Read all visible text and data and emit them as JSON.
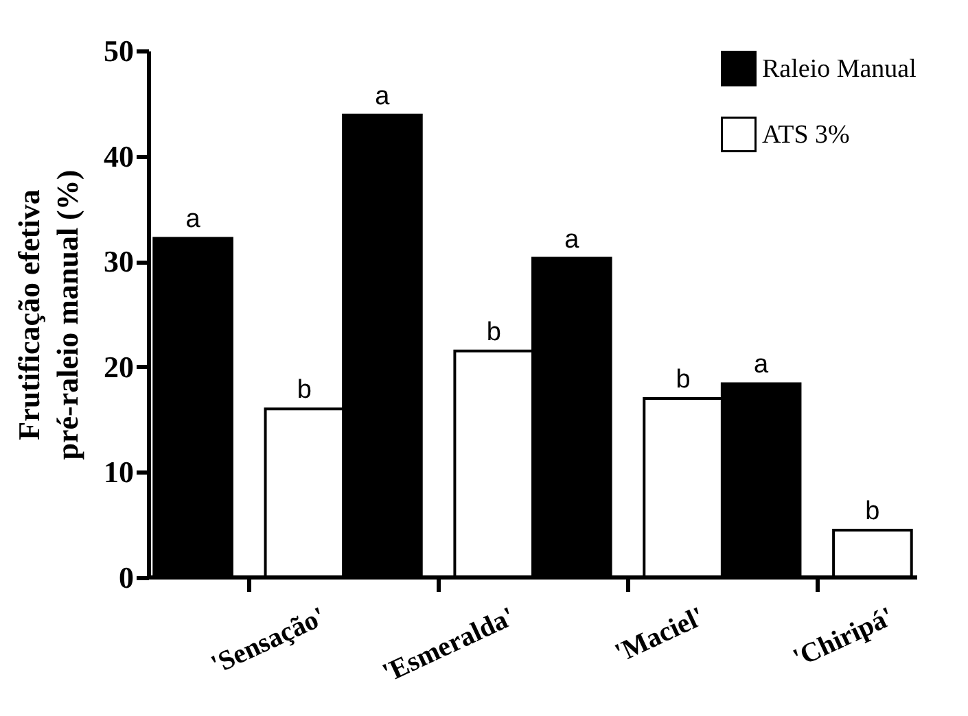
{
  "chart_data": {
    "type": "bar",
    "ylabel": "Frutificação efetiva\npré-raleio manual (%)",
    "categories": [
      "'Sensação'",
      "'Esmeralda'",
      "'Maciel'",
      "'Chiripá'"
    ],
    "series": [
      {
        "name": "Raleio Manual",
        "color": "#000000",
        "values": [
          32.2,
          43.9,
          30.3,
          18.4
        ],
        "value_labels": [
          "a",
          "a",
          "a",
          "a"
        ]
      },
      {
        "name": "ATS 3%",
        "color": "#ffffff",
        "values": [
          16.0,
          21.5,
          17.0,
          4.5
        ],
        "value_labels": [
          "b",
          "b",
          "b",
          "b"
        ]
      }
    ],
    "ylim": [
      0,
      50
    ],
    "yticks": [
      0,
      10,
      20,
      30,
      40,
      50
    ],
    "grid": false,
    "legend": "top right"
  }
}
